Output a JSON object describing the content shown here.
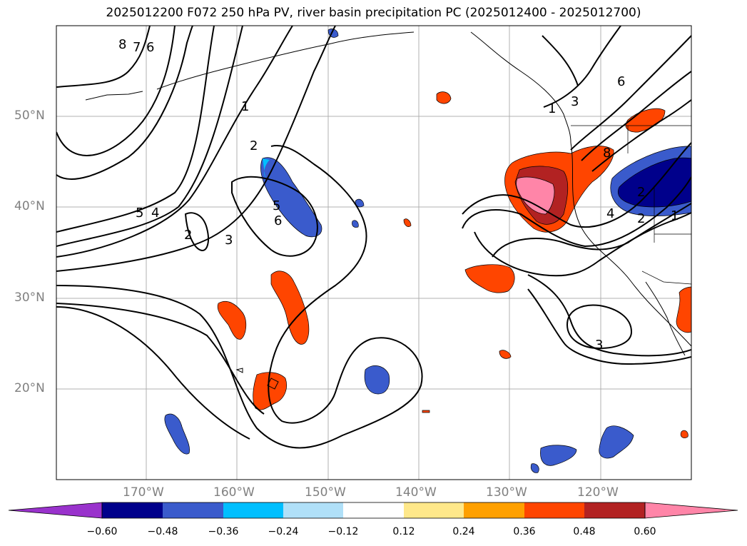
{
  "title": "2025012200 F072 250 hPa PV, river basin precipitation PC (2025012400 - 2025012700)",
  "map": {
    "projection": "PlateCarree",
    "lon_range": [
      -180,
      -110
    ],
    "lat_range": [
      10,
      60
    ],
    "lat_labels": [
      "50°N",
      "40°N",
      "30°N",
      "20°N"
    ],
    "lon_labels": [
      "170°W",
      "160°W",
      "150°W",
      "140°W",
      "130°W",
      "120°W"
    ],
    "gridlines": true,
    "coastlines": true,
    "land_fill": "none",
    "contour_variable": "250 hPa PV",
    "contour_labels": [
      "8",
      "7",
      "6",
      "5",
      "4",
      "2",
      "3",
      "1",
      "2",
      "5",
      "6",
      "3",
      "1",
      "6",
      "8",
      "2",
      "4",
      "2",
      "1",
      "3"
    ],
    "shaded_variable": "river basin precipitation PC"
  },
  "colorbar": {
    "ticks": [
      "−0.60",
      "−0.48",
      "−0.36",
      "−0.24",
      "−0.12",
      "0.12",
      "0.24",
      "0.36",
      "0.48",
      "0.60"
    ],
    "colors": [
      "#9932cc",
      "#00008b",
      "#3a5bcc",
      "#00bfff",
      "#b0e0f8",
      "#ffffff",
      "#ffe88a",
      "#ffa000",
      "#ff4500",
      "#b22222",
      "#ff85a8"
    ],
    "extend": "both",
    "orientation": "horizontal"
  },
  "colors": {
    "contour": "#000000",
    "grid": "#b0b0b0",
    "axis_label": "#808080"
  }
}
